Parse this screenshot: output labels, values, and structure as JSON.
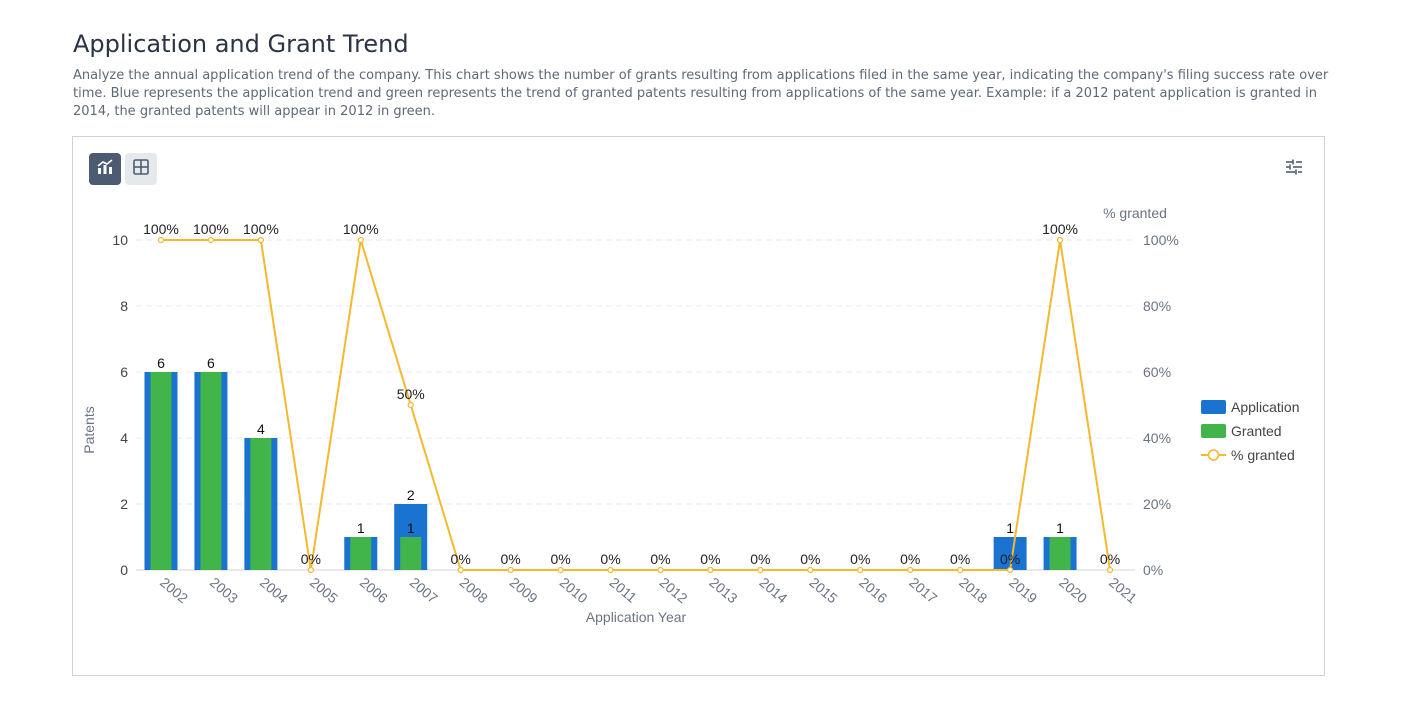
{
  "page": {
    "title": "Application and Grant Trend",
    "description": "Analyze the annual application trend of the company. This chart shows the number of grants resulting from applications filed in the same year, indicating the company's filing success rate over time. Blue represents the application trend and green represents the trend of granted patents resulting from applications of the same year. Example: if a 2012 patent application is granted in 2014, the granted patents will appear in 2012 in green."
  },
  "toolbar": {
    "chart_view_icon": "bar-line-chart-icon",
    "table_view_icon": "table-grid-icon",
    "settings_icon": "sliders-settings-icon"
  },
  "colors": {
    "application": "#1a73d0",
    "granted": "#41b549",
    "percent_granted": "#f5b82e",
    "active_button": "#4d5b72",
    "inactive_button": "#e5e8ed"
  },
  "chart_data": {
    "type": "bar",
    "categories": [
      "2002",
      "2003",
      "2004",
      "2005",
      "2006",
      "2007",
      "2008",
      "2009",
      "2010",
      "2011",
      "2012",
      "2013",
      "2014",
      "2015",
      "2016",
      "2017",
      "2018",
      "2019",
      "2020",
      "2021"
    ],
    "series": [
      {
        "name": "Application",
        "type": "bar",
        "values": [
          6,
          6,
          4,
          0,
          1,
          2,
          0,
          0,
          0,
          0,
          0,
          0,
          0,
          0,
          0,
          0,
          0,
          1,
          1,
          0
        ]
      },
      {
        "name": "Granted",
        "type": "bar",
        "values": [
          6,
          6,
          4,
          0,
          1,
          1,
          0,
          0,
          0,
          0,
          0,
          0,
          0,
          0,
          0,
          0,
          0,
          0,
          1,
          0
        ]
      },
      {
        "name": "% granted",
        "type": "line",
        "axis": "right",
        "values": [
          100,
          100,
          100,
          0,
          100,
          50,
          0,
          0,
          0,
          0,
          0,
          0,
          0,
          0,
          0,
          0,
          0,
          0,
          100,
          0
        ],
        "labels": [
          "100%",
          "100%",
          "100%",
          "0%",
          "100%",
          "50%",
          "0%",
          "0%",
          "0%",
          "0%",
          "0%",
          "0%",
          "0%",
          "0%",
          "0%",
          "0%",
          "0%",
          "0%",
          "100%",
          "0%"
        ]
      }
    ],
    "xlabel": "Application Year",
    "ylabel": "Patents",
    "ylabel_right": "% granted",
    "ylim": [
      0,
      10
    ],
    "yticks": [
      "0",
      "2",
      "4",
      "6",
      "8",
      "10"
    ],
    "ylim_right": [
      0,
      100
    ],
    "yticks_right": [
      "0%",
      "20%",
      "40%",
      "60%",
      "80%",
      "100%"
    ],
    "grid": true,
    "legend_position": "right",
    "legend": [
      "Application",
      "Granted",
      "% granted"
    ]
  }
}
